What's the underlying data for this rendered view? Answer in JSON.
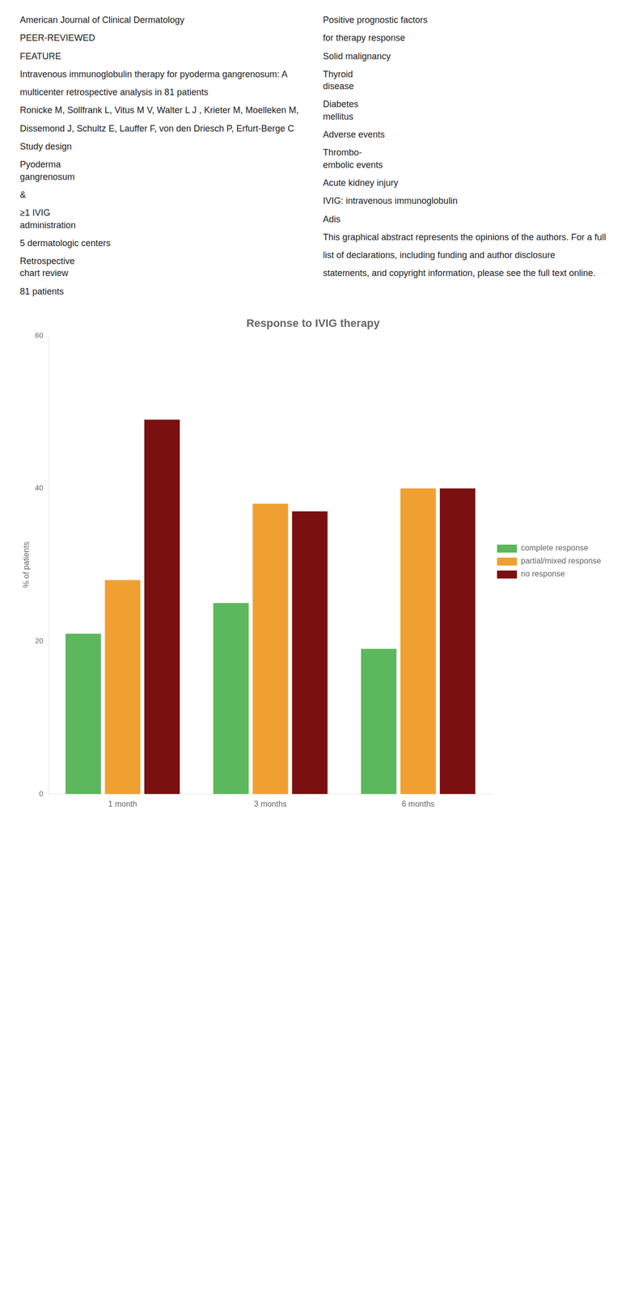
{
  "chart_data": {
    "type": "bar",
    "title": "Response to IVIG therapy",
    "y_label": "% of patients",
    "categories": [
      "1 month",
      "3 months",
      "6 months"
    ],
    "series": [
      {
        "name": "complete response",
        "color": "#5cb85c",
        "values": [
          21,
          25,
          19
        ]
      },
      {
        "name": "partial/mixed response",
        "color": "#f0a030",
        "values": [
          28,
          38,
          40
        ]
      },
      {
        "name": "no response",
        "color": "#7a1010",
        "values": [
          49,
          37,
          40
        ]
      }
    ],
    "ylim": [
      0,
      60
    ],
    "yticks": [
      0,
      20,
      40,
      60
    ],
    "grid": false,
    "legend": "right",
    "annotations": [
      "American Journal of Clinical Dermatology",
      "PEER-REVIEWED",
      "FEATURE",
      "Intravenous immunoglobulin therapy for pyoderma gangrenosum: A",
      "multicenter retrospective analysis in 81 patients",
      "Ronicke M, Sollfrank L, Vitus M V, Walter L J , Krieter M, Moelleken M,",
      "Dissemond J, Schultz E, Lauffer F, von den Driesch P, Erfurt-Berge C",
      "Study design",
      "Pyoderma\ngangrenosum",
      "&",
      "≥1 IVIG\nadministration",
      "5 dermatologic centers",
      "Retrospective\nchart review",
      "81 patients",
      "Positive prognostic factors",
      "for therapy response",
      "Solid malignancy",
      "Thyroid\ndisease",
      "Diabetes\nmellitus",
      "Adverse events",
      "Thrombo-\nembolic events",
      "Acute kidney injury",
      "IVIG: intravenous immunoglobulin",
      "Adis",
      "This graphical abstract represents the opinions of the authors. For a full",
      "list of declarations, including funding and author disclosure",
      "statements, and copyright information, please see the full text online."
    ]
  }
}
